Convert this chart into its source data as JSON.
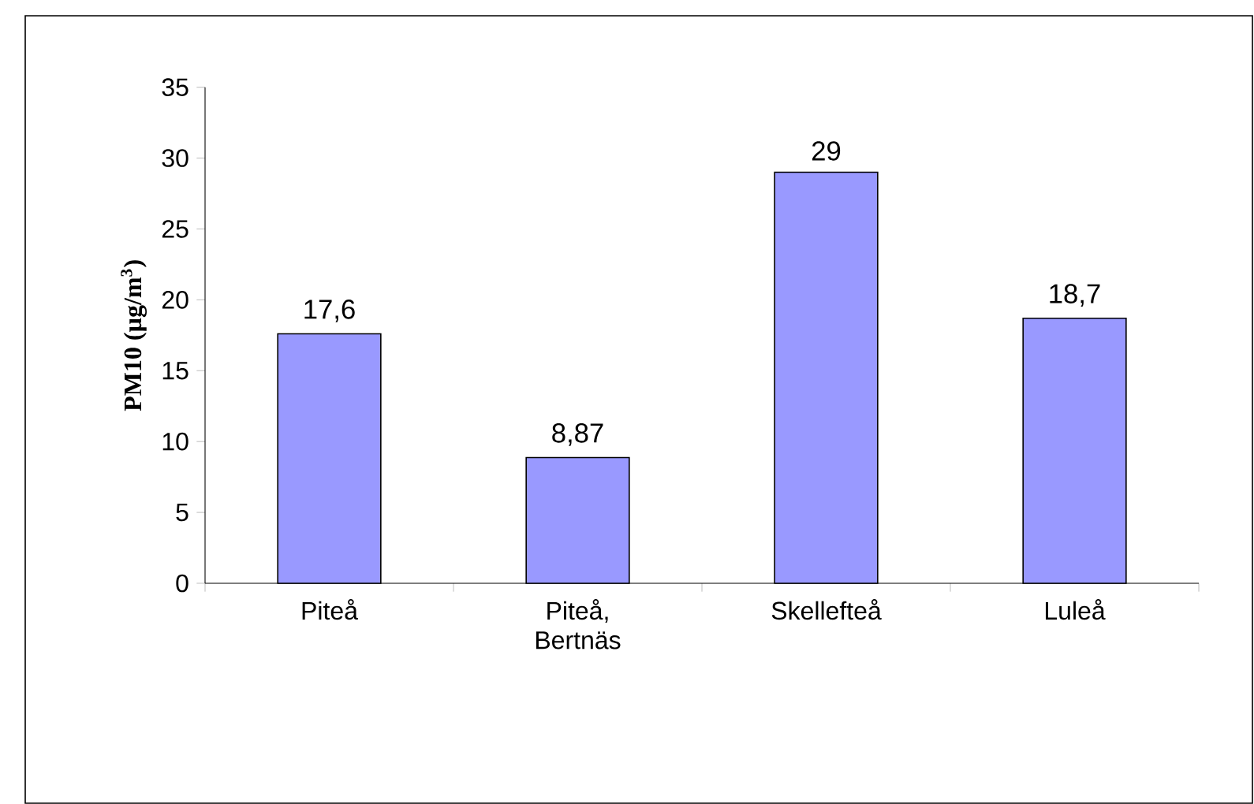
{
  "chart_data": {
    "type": "bar",
    "categories": [
      "Piteå",
      "Piteå, Bertnäs",
      "Skellefteå",
      "Luleå"
    ],
    "values": [
      17.6,
      8.87,
      29,
      18.7
    ],
    "value_labels": [
      "17,6",
      "8,87",
      "29",
      "18,7"
    ],
    "color": "#9999ff",
    "ylabel": "PM10 (µg/m$^{3}$)",
    "ylim": [
      0,
      35
    ],
    "yticks": [
      0,
      5,
      10,
      15,
      20,
      25,
      30,
      35
    ],
    "grid": false
  }
}
